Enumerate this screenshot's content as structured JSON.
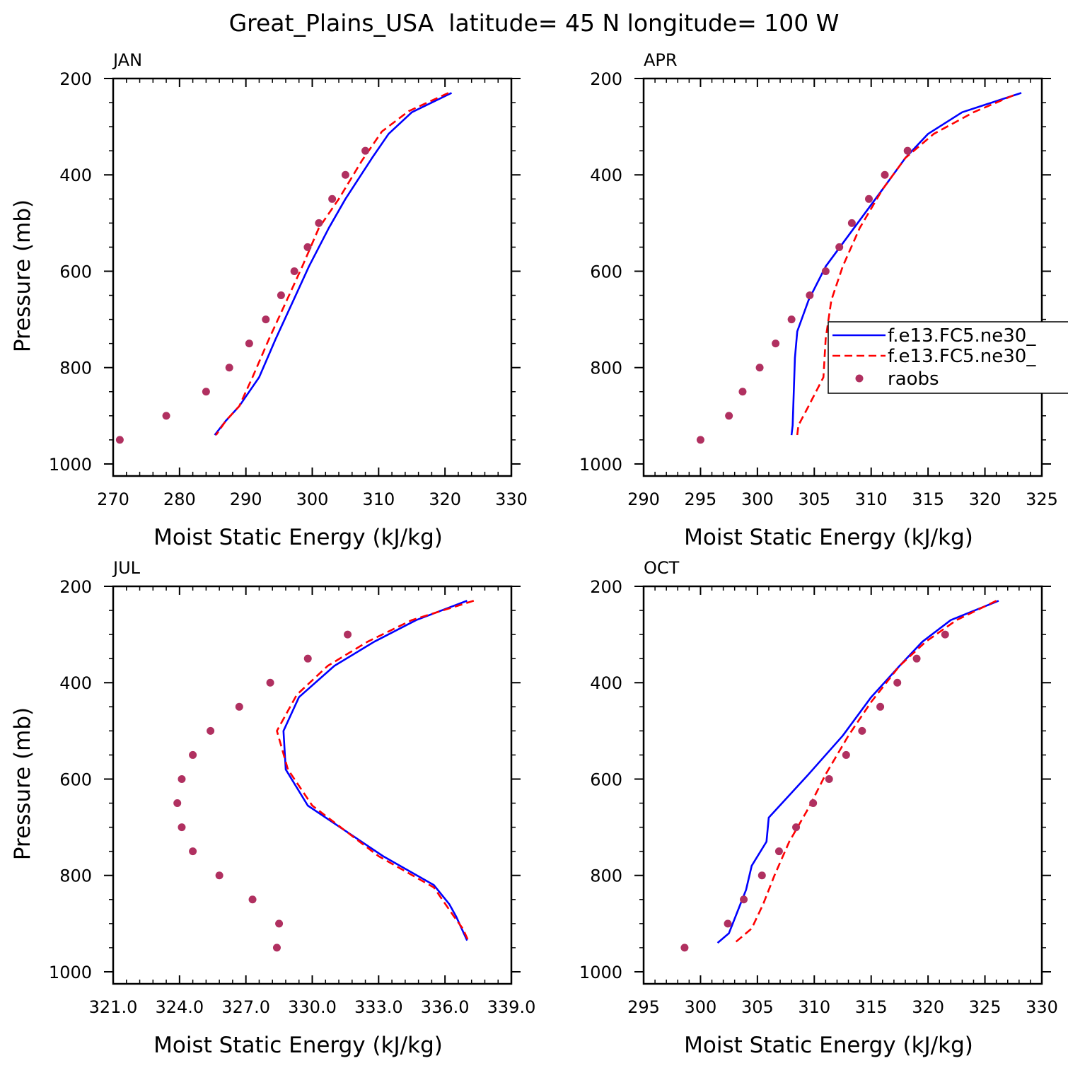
{
  "title": "Great_Plains_USA  latitude= 45 N longitude= 100 W",
  "chart_data": [
    {
      "type": "line",
      "panel_title": "JAN",
      "xlabel": "Moist Static Energy (kJ/kg)",
      "ylabel": "Pressure (mb)",
      "xlim": [
        270,
        330
      ],
      "ylim": [
        1025,
        200
      ],
      "xticks": [
        "270",
        "280",
        "290",
        "300",
        "310",
        "320",
        "330"
      ],
      "yticks": [
        "200",
        "400",
        "600",
        "800",
        "1000"
      ],
      "series": [
        {
          "name": "f.e13.FC5.ne30_",
          "color": "#0000ff",
          "style": "solid",
          "points": [
            [
              321,
              230
            ],
            [
              315,
              270
            ],
            [
              311.5,
              315
            ],
            [
              309,
              365
            ],
            [
              305,
              450
            ],
            [
              302.5,
              510
            ],
            [
              299.5,
              590
            ],
            [
              297,
              665
            ],
            [
              294.5,
              740
            ],
            [
              292,
              820
            ],
            [
              289,
              880
            ],
            [
              287,
              910
            ],
            [
              285.3,
              940
            ]
          ]
        },
        {
          "name": "f.e13.FC5.ne30_",
          "color": "#ff0000",
          "style": "dashed",
          "points": [
            [
              320.5,
              230
            ],
            [
              314.5,
              268
            ],
            [
              310.5,
              310
            ],
            [
              307.5,
              370
            ],
            [
              304,
              450
            ],
            [
              301,
              510
            ],
            [
              298.5,
              590
            ],
            [
              296,
              665
            ],
            [
              293.5,
              740
            ],
            [
              291,
              820
            ],
            [
              289,
              880
            ],
            [
              287,
              910
            ],
            [
              285.5,
              940
            ]
          ]
        },
        {
          "name": "raobs",
          "color": "#b03060",
          "style": "dots",
          "points": [
            [
              308,
              350
            ],
            [
              305,
              400
            ],
            [
              303,
              450
            ],
            [
              301,
              500
            ],
            [
              299.3,
              550
            ],
            [
              297.3,
              600
            ],
            [
              295.3,
              650
            ],
            [
              293,
              700
            ],
            [
              290.5,
              750
            ],
            [
              287.5,
              800
            ],
            [
              284,
              850
            ],
            [
              278,
              900
            ],
            [
              271,
              950
            ]
          ]
        }
      ]
    },
    {
      "type": "line",
      "panel_title": "APR",
      "xlabel": "Moist Static Energy (kJ/kg)",
      "ylabel": "",
      "xlim": [
        290,
        325
      ],
      "ylim": [
        1025,
        200
      ],
      "xticks": [
        "290",
        "295",
        "300",
        "305",
        "310",
        "315",
        "320",
        "325"
      ],
      "yticks": [
        "200",
        "400",
        "600",
        "800",
        "1000"
      ],
      "series": [
        {
          "name": "f.e13.FC5.ne30_",
          "color": "#0000ff",
          "style": "solid",
          "points": [
            [
              323.2,
              230
            ],
            [
              318,
              270
            ],
            [
              315,
              315
            ],
            [
              313,
              365
            ],
            [
              311,
              430
            ],
            [
              308.5,
              510
            ],
            [
              306,
              590
            ],
            [
              304.5,
              660
            ],
            [
              303.5,
              725
            ],
            [
              303.3,
              780
            ],
            [
              303.2,
              850
            ],
            [
              303.1,
              920
            ],
            [
              303,
              940
            ]
          ]
        },
        {
          "name": "f.e13.FC5.ne30_",
          "color": "#ff0000",
          "style": "dashed",
          "points": [
            [
              322.5,
              235
            ],
            [
              319,
              270
            ],
            [
              315.5,
              315
            ],
            [
              313,
              365
            ],
            [
              311,
              430
            ],
            [
              309,
              510
            ],
            [
              307.5,
              590
            ],
            [
              306.5,
              660
            ],
            [
              306,
              740
            ],
            [
              305.8,
              820
            ],
            [
              304.5,
              880
            ],
            [
              303.6,
              920
            ],
            [
              303.5,
              940
            ]
          ]
        },
        {
          "name": "raobs",
          "color": "#b03060",
          "style": "dots",
          "points": [
            [
              313.2,
              350
            ],
            [
              311.2,
              400
            ],
            [
              309.8,
              450
            ],
            [
              308.3,
              500
            ],
            [
              307.2,
              550
            ],
            [
              306,
              600
            ],
            [
              304.6,
              650
            ],
            [
              303,
              700
            ],
            [
              301.6,
              750
            ],
            [
              300.2,
              800
            ],
            [
              298.7,
              850
            ],
            [
              297.5,
              900
            ],
            [
              295,
              950
            ]
          ]
        }
      ]
    },
    {
      "type": "line",
      "panel_title": "JUL",
      "xlabel": "Moist Static Energy (kJ/kg)",
      "ylabel": "Pressure (mb)",
      "xlim": [
        321,
        339
      ],
      "ylim": [
        1025,
        200
      ],
      "xticks": [
        "321.0",
        "324.0",
        "327.0",
        "330.0",
        "333.0",
        "336.0",
        "339.0"
      ],
      "yticks": [
        "200",
        "400",
        "600",
        "800",
        "1000"
      ],
      "series": [
        {
          "name": "f.e13.FC5.ne30_",
          "color": "#0000ff",
          "style": "solid",
          "points": [
            [
              337,
              230
            ],
            [
              334.7,
              270
            ],
            [
              332.8,
              315
            ],
            [
              331,
              365
            ],
            [
              329.4,
              430
            ],
            [
              328.7,
              500
            ],
            [
              328.8,
              580
            ],
            [
              329.8,
              655
            ],
            [
              333.2,
              760
            ],
            [
              335.5,
              820
            ],
            [
              336.2,
              860
            ],
            [
              336.5,
              885
            ],
            [
              337,
              935
            ]
          ]
        },
        {
          "name": "f.e13.FC5.ne30_",
          "color": "#ff0000",
          "style": "dashed",
          "points": [
            [
              337.3,
              230
            ],
            [
              334.5,
              270
            ],
            [
              332.5,
              315
            ],
            [
              330.7,
              365
            ],
            [
              329.3,
              425
            ],
            [
              328.4,
              500
            ],
            [
              328.9,
              580
            ],
            [
              330,
              655
            ],
            [
              333,
              760
            ],
            [
              335.5,
              825
            ],
            [
              336.4,
              885
            ],
            [
              336.8,
              910
            ],
            [
              337.1,
              940
            ]
          ]
        },
        {
          "name": "raobs",
          "color": "#b03060",
          "style": "dots",
          "points": [
            [
              331.6,
              300
            ],
            [
              329.8,
              350
            ],
            [
              328.1,
              400
            ],
            [
              326.7,
              450
            ],
            [
              325.4,
              500
            ],
            [
              324.6,
              550
            ],
            [
              324.1,
              600
            ],
            [
              323.9,
              650
            ],
            [
              324.1,
              700
            ],
            [
              324.6,
              750
            ],
            [
              325.8,
              800
            ],
            [
              327.3,
              850
            ],
            [
              328.5,
              900
            ],
            [
              328.4,
              950
            ]
          ]
        }
      ]
    },
    {
      "type": "line",
      "panel_title": "OCT",
      "xlabel": "Moist Static Energy (kJ/kg)",
      "ylabel": "",
      "xlim": [
        295,
        330
      ],
      "ylim": [
        1025,
        200
      ],
      "xticks": [
        "295",
        "300",
        "305",
        "310",
        "315",
        "320",
        "325",
        "330"
      ],
      "yticks": [
        "200",
        "400",
        "600",
        "800",
        "1000"
      ],
      "series": [
        {
          "name": "f.e13.FC5.ne30_",
          "color": "#0000ff",
          "style": "solid",
          "points": [
            [
              326.2,
              230
            ],
            [
              322,
              270
            ],
            [
              319.5,
              315
            ],
            [
              317.5,
              365
            ],
            [
              315,
              430
            ],
            [
              312.5,
              510
            ],
            [
              309.5,
              590
            ],
            [
              306,
              680
            ],
            [
              305.8,
              730
            ],
            [
              304.5,
              780
            ],
            [
              304,
              830
            ],
            [
              303.5,
              860
            ],
            [
              302.5,
              920
            ],
            [
              301.5,
              940
            ]
          ]
        },
        {
          "name": "f.e13.FC5.ne30_",
          "color": "#ff0000",
          "style": "dashed",
          "points": [
            [
              326,
              230
            ],
            [
              322.5,
              270
            ],
            [
              319.8,
              315
            ],
            [
              317.5,
              365
            ],
            [
              315,
              440
            ],
            [
              313,
              510
            ],
            [
              311,
              590
            ],
            [
              309.5,
              660
            ],
            [
              307.8,
              730
            ],
            [
              306.5,
              800
            ],
            [
              305.5,
              860
            ],
            [
              304.5,
              910
            ],
            [
              303,
              940
            ]
          ]
        },
        {
          "name": "raobs",
          "color": "#b03060",
          "style": "dots",
          "points": [
            [
              321.5,
              300
            ],
            [
              319,
              350
            ],
            [
              317.3,
              400
            ],
            [
              315.8,
              450
            ],
            [
              314.2,
              500
            ],
            [
              312.8,
              550
            ],
            [
              311.3,
              600
            ],
            [
              309.9,
              650
            ],
            [
              308.4,
              700
            ],
            [
              306.9,
              750
            ],
            [
              305.4,
              800
            ],
            [
              303.8,
              850
            ],
            [
              302.4,
              900
            ],
            [
              298.6,
              950
            ]
          ]
        }
      ]
    }
  ],
  "legend": {
    "placement": "right of APR panel",
    "entries": [
      "f.e13.FC5.ne30_",
      "f.e13.FC5.ne30_",
      "raobs"
    ]
  }
}
